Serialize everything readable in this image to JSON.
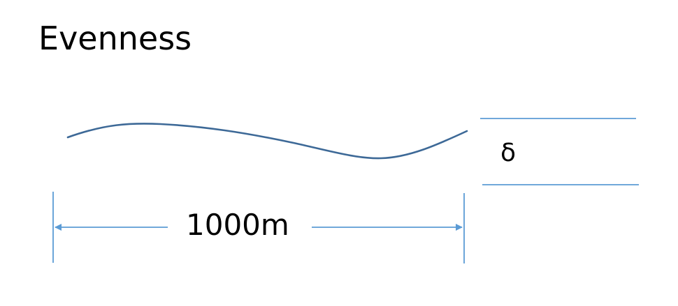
{
  "title": "Evenness",
  "dimension_label": "1000m",
  "deviation_label": "δ",
  "colors": {
    "curve": "#3d6997",
    "dimension_lines": "#5b9bd5",
    "text": "#000000"
  }
}
